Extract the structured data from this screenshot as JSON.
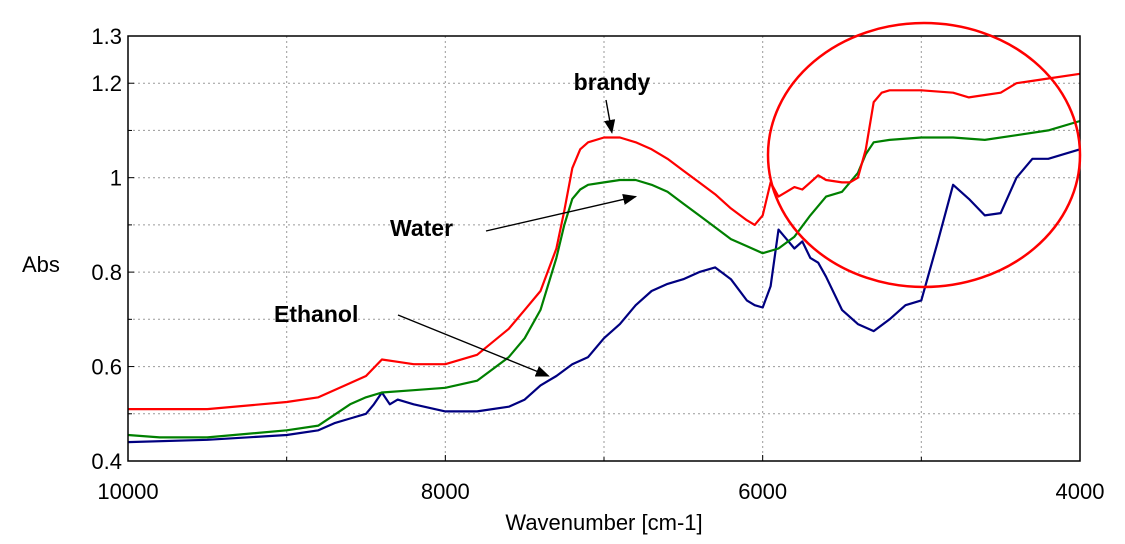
{
  "chart_data": {
    "type": "line",
    "title": "",
    "xlabel": "Wavenumber [cm-1]",
    "ylabel": "Abs",
    "xlim": [
      10000,
      4000
    ],
    "ylim": [
      0.4,
      1.3
    ],
    "x_reversed": true,
    "grid": true,
    "x_ticks": [
      {
        "value": 10000,
        "label": "10000"
      },
      {
        "value": 8000,
        "label": "8000"
      },
      {
        "value": 6000,
        "label": "6000"
      },
      {
        "value": 4000,
        "label": "4000"
      }
    ],
    "y_ticks": [
      {
        "value": 0.4,
        "label": "0.4"
      },
      {
        "value": 0.6,
        "label": "0.6"
      },
      {
        "value": 0.8,
        "label": "0.8"
      },
      {
        "value": 1.0,
        "label": "1"
      },
      {
        "value": 1.2,
        "label": "1.2"
      },
      {
        "value": 1.3,
        "label": "1.3"
      }
    ],
    "series": [
      {
        "name": "brandy",
        "color": "#ff0000",
        "x": [
          10000,
          9500,
          9000,
          8800,
          8600,
          8500,
          8400,
          8300,
          8200,
          8000,
          7800,
          7600,
          7500,
          7400,
          7300,
          7250,
          7200,
          7150,
          7100,
          7000,
          6900,
          6800,
          6700,
          6600,
          6500,
          6400,
          6300,
          6200,
          6100,
          6050,
          6000,
          5950,
          5900,
          5850,
          5800,
          5750,
          5700,
          5650,
          5600,
          5500,
          5450,
          5400,
          5350,
          5300,
          5250,
          5200,
          5000,
          4800,
          4700,
          4600,
          4500,
          4400,
          4300,
          4200,
          4000
        ],
        "y": [
          0.51,
          0.51,
          0.525,
          0.535,
          0.565,
          0.58,
          0.615,
          0.61,
          0.605,
          0.605,
          0.625,
          0.68,
          0.72,
          0.76,
          0.85,
          0.93,
          1.02,
          1.06,
          1.075,
          1.085,
          1.085,
          1.075,
          1.06,
          1.04,
          1.015,
          0.99,
          0.965,
          0.935,
          0.91,
          0.9,
          0.92,
          0.99,
          0.96,
          0.97,
          0.98,
          0.975,
          0.99,
          1.005,
          0.995,
          0.99,
          0.99,
          1.0,
          1.06,
          1.16,
          1.18,
          1.185,
          1.185,
          1.18,
          1.17,
          1.175,
          1.18,
          1.2,
          1.205,
          1.21,
          1.22
        ]
      },
      {
        "name": "Water",
        "color": "#008000",
        "x": [
          10000,
          9800,
          9500,
          9000,
          8800,
          8600,
          8500,
          8400,
          8200,
          8000,
          7800,
          7600,
          7500,
          7400,
          7300,
          7250,
          7200,
          7150,
          7100,
          7000,
          6900,
          6800,
          6700,
          6600,
          6500,
          6400,
          6300,
          6200,
          6100,
          6000,
          5900,
          5800,
          5700,
          5600,
          5500,
          5450,
          5400,
          5350,
          5300,
          5200,
          5000,
          4800,
          4600,
          4400,
          4200,
          4000
        ],
        "y": [
          0.455,
          0.45,
          0.45,
          0.465,
          0.475,
          0.52,
          0.535,
          0.545,
          0.55,
          0.555,
          0.57,
          0.62,
          0.66,
          0.72,
          0.83,
          0.9,
          0.955,
          0.975,
          0.985,
          0.99,
          0.995,
          0.995,
          0.985,
          0.97,
          0.945,
          0.92,
          0.895,
          0.87,
          0.855,
          0.84,
          0.85,
          0.875,
          0.92,
          0.96,
          0.97,
          0.99,
          1.01,
          1.05,
          1.075,
          1.08,
          1.085,
          1.085,
          1.08,
          1.09,
          1.1,
          1.12
        ]
      },
      {
        "name": "Ethanol",
        "color": "#000080",
        "x": [
          10000,
          9500,
          9000,
          8800,
          8700,
          8600,
          8500,
          8450,
          8400,
          8350,
          8300,
          8200,
          8000,
          7800,
          7600,
          7500,
          7400,
          7300,
          7200,
          7100,
          7000,
          6900,
          6800,
          6700,
          6600,
          6500,
          6400,
          6300,
          6200,
          6100,
          6050,
          6000,
          5950,
          5900,
          5850,
          5800,
          5750,
          5700,
          5650,
          5600,
          5500,
          5400,
          5300,
          5200,
          5100,
          5000,
          4900,
          4800,
          4700,
          4600,
          4500,
          4400,
          4300,
          4200,
          4100,
          4000
        ],
        "y": [
          0.44,
          0.445,
          0.455,
          0.465,
          0.48,
          0.49,
          0.5,
          0.52,
          0.545,
          0.52,
          0.53,
          0.52,
          0.505,
          0.505,
          0.515,
          0.53,
          0.56,
          0.58,
          0.605,
          0.62,
          0.66,
          0.69,
          0.73,
          0.76,
          0.775,
          0.785,
          0.8,
          0.81,
          0.785,
          0.74,
          0.73,
          0.725,
          0.77,
          0.89,
          0.87,
          0.85,
          0.865,
          0.83,
          0.82,
          0.79,
          0.72,
          0.69,
          0.675,
          0.7,
          0.73,
          0.74,
          0.86,
          0.985,
          0.955,
          0.92,
          0.925,
          1.0,
          1.04,
          1.04,
          1.05,
          1.06
        ]
      }
    ],
    "annotations": [
      {
        "text": "brandy",
        "series": "brandy",
        "target_x": 6950,
        "target_y": 1.085
      },
      {
        "text": "Water",
        "series": "Water",
        "target_x": 6800,
        "target_y": 0.96
      },
      {
        "text": "Ethanol",
        "series": "Ethanol",
        "target_x": 7350,
        "target_y": 0.58
      }
    ],
    "highlight": {
      "shape": "ellipse",
      "color": "#ff0000",
      "region": "4000-5800 cm-1, upper right"
    }
  }
}
